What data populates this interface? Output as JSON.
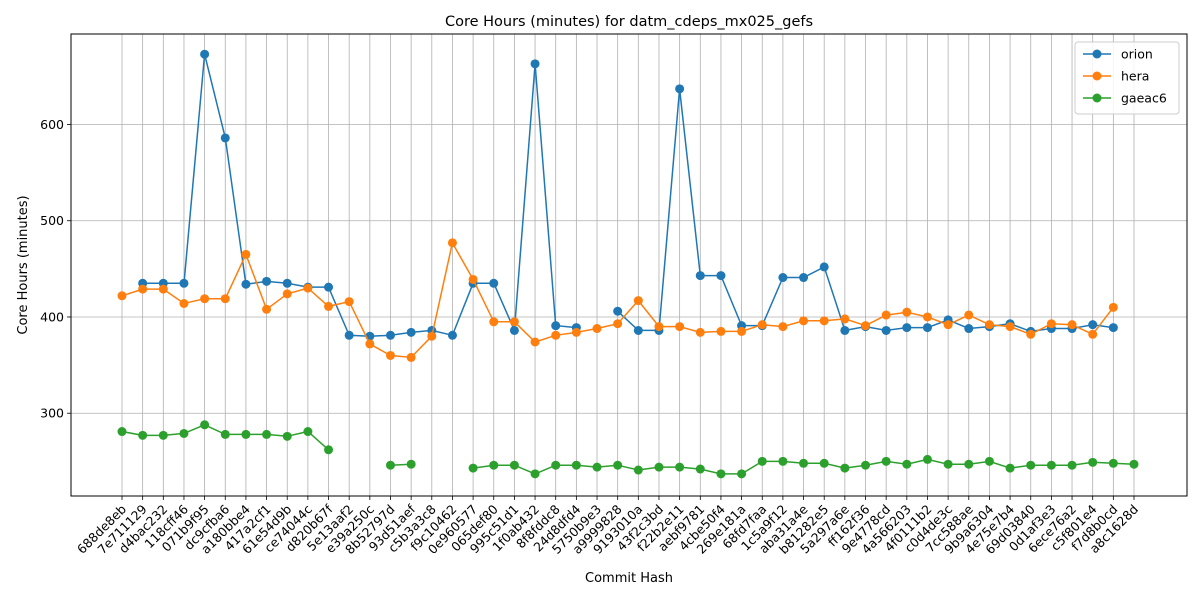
{
  "chart_data": {
    "type": "line",
    "title": "Core Hours (minutes) for datm_cdeps_mx025_gefs",
    "xlabel": "Commit Hash",
    "ylabel": "Core Hours (minutes)",
    "ylim": [
      214,
      694
    ],
    "yticks": [
      300,
      400,
      500,
      600
    ],
    "grid": true,
    "legend_position": "top-right",
    "categories": [
      "688de8eb",
      "7e711129",
      "d4bac232",
      "118cff46",
      "071b9f95",
      "dc9cfba6",
      "a180bbe4",
      "417a2cf1",
      "61e54d9b",
      "ce74044c",
      "d820b67f",
      "5e13aaf2",
      "e39a250c",
      "8b52797d",
      "93d51aef",
      "c5b3a3c8",
      "f9c10462",
      "0e960577",
      "065def80",
      "995c51d1",
      "1f0ab432",
      "8f8fddc8",
      "24d8dfd4",
      "5750b9e3",
      "a9999828",
      "9193010a",
      "43f2c3bd",
      "f22b2e11",
      "aebf9781",
      "4cbe50f4",
      "269e181a",
      "68fd7faa",
      "1c5a9f12",
      "aba31a4e",
      "b81282e5",
      "5a297a6e",
      "ff162f36",
      "9e4778cd",
      "4a566203",
      "4f0111b2",
      "c0d4de3c",
      "7cc588ae",
      "9b9a6304",
      "4e75e7b4",
      "69d03840",
      "0d1af3e3",
      "6ece76a2",
      "c5f801e4",
      "f7d8b0cd",
      "a8c1628d"
    ],
    "series": [
      {
        "name": "orion",
        "color": "#1f77b4",
        "values": [
          null,
          435,
          435,
          435,
          673,
          586,
          434,
          437,
          435,
          431,
          431,
          381,
          380,
          381,
          384,
          386,
          381,
          435,
          435,
          386,
          663,
          391,
          389,
          null,
          406,
          386,
          386,
          637,
          443,
          443,
          391,
          391,
          441,
          441,
          452,
          386,
          390,
          386,
          389,
          389,
          397,
          388,
          390,
          393,
          385,
          388,
          388,
          392,
          389,
          null
        ]
      },
      {
        "name": "hera",
        "color": "#ff7f0e",
        "values": [
          422,
          429,
          429,
          414,
          419,
          419,
          465,
          408,
          424,
          430,
          411,
          416,
          372,
          360,
          358,
          380,
          477,
          439,
          395,
          395,
          374,
          381,
          384,
          388,
          393,
          417,
          390,
          390,
          384,
          385,
          385,
          392,
          390,
          396,
          396,
          398,
          391,
          402,
          405,
          400,
          392,
          402,
          392,
          390,
          382,
          393,
          392,
          382,
          410,
          null
        ]
      },
      {
        "name": "gaeac6",
        "color": "#2ca02c",
        "values": [
          281,
          277,
          277,
          279,
          288,
          278,
          278,
          278,
          276,
          281,
          262,
          null,
          null,
          246,
          247,
          null,
          null,
          243,
          246,
          246,
          237,
          246,
          246,
          244,
          246,
          241,
          244,
          244,
          242,
          237,
          237,
          250,
          250,
          248,
          248,
          243,
          246,
          250,
          247,
          252,
          247,
          247,
          250,
          243,
          246,
          246,
          246,
          249,
          248,
          247
        ]
      }
    ]
  }
}
